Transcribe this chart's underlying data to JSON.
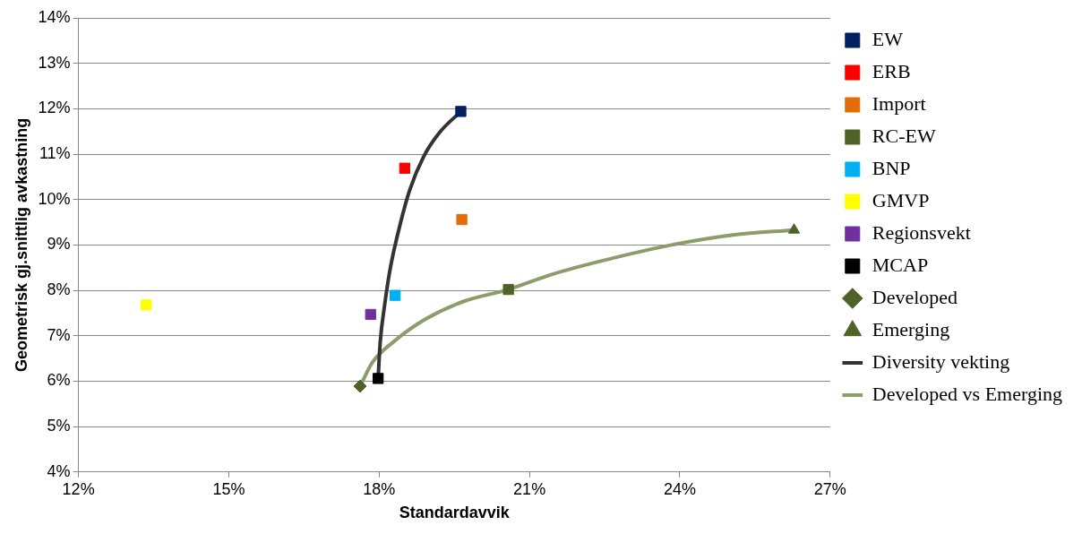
{
  "chart_data": {
    "type": "scatter",
    "xlabel": "Standardavvik",
    "ylabel": "Geometrisk gj.snittlig avkastning",
    "grid": "y",
    "legend": "right",
    "xlim": [
      12,
      27
    ],
    "xticks": [
      {
        "value": 12,
        "label": "12%"
      },
      {
        "value": 15,
        "label": "15%"
      },
      {
        "value": 18,
        "label": "18%"
      },
      {
        "value": 21,
        "label": "21%"
      },
      {
        "value": 24,
        "label": "24%"
      },
      {
        "value": 27,
        "label": "27%"
      }
    ],
    "ylim": [
      4,
      14
    ],
    "yticks": [
      {
        "value": 4,
        "label": "4%"
      },
      {
        "value": 5,
        "label": "5%"
      },
      {
        "value": 6,
        "label": "6%"
      },
      {
        "value": 7,
        "label": "7%"
      },
      {
        "value": 8,
        "label": "8%"
      },
      {
        "value": 9,
        "label": "9%"
      },
      {
        "value": 10,
        "label": "10%"
      },
      {
        "value": 11,
        "label": "11%"
      },
      {
        "value": 12,
        "label": "12%"
      },
      {
        "value": 13,
        "label": "13%"
      },
      {
        "value": 14,
        "label": "14%"
      }
    ],
    "series": [
      {
        "name": "EW",
        "type": "scatter",
        "marker": "square",
        "color": "#002060",
        "x": [
          19.63
        ],
        "values": [
          11.94
        ]
      },
      {
        "name": "ERB",
        "type": "scatter",
        "marker": "square",
        "color": "#ff0000",
        "x": [
          18.51
        ],
        "values": [
          10.69
        ]
      },
      {
        "name": "Import",
        "type": "scatter",
        "marker": "square",
        "color": "#e36c09",
        "x": [
          19.65
        ],
        "values": [
          9.56
        ]
      },
      {
        "name": "RC-EW",
        "type": "scatter",
        "marker": "square",
        "color": "#4f6228",
        "x": [
          20.58
        ],
        "values": [
          8.02
        ]
      },
      {
        "name": "BNP",
        "type": "scatter",
        "marker": "square",
        "color": "#00b0f0",
        "x": [
          18.32
        ],
        "values": [
          7.89
        ]
      },
      {
        "name": "GMVP",
        "type": "scatter",
        "marker": "square",
        "color": "#ffff00",
        "x": [
          13.35
        ],
        "values": [
          7.68
        ]
      },
      {
        "name": "Regionsvekt",
        "type": "scatter",
        "marker": "square",
        "color": "#7030a0",
        "x": [
          17.83
        ],
        "values": [
          7.47
        ]
      },
      {
        "name": "MCAP",
        "type": "scatter",
        "marker": "square",
        "color": "#000000",
        "x": [
          17.98
        ],
        "values": [
          6.06
        ]
      },
      {
        "name": "Developed",
        "type": "scatter",
        "marker": "diamond",
        "color": "#4f6228",
        "x": [
          17.62
        ],
        "values": [
          5.89
        ]
      },
      {
        "name": "Emerging",
        "type": "scatter",
        "marker": "triangle",
        "color": "#4f6228",
        "x": [
          26.28
        ],
        "values": [
          9.33
        ]
      },
      {
        "name": "Diversity vekting",
        "type": "line",
        "marker": "none",
        "color": "#333333",
        "x": [
          17.98,
          18.02,
          18.11,
          18.23,
          18.4,
          18.61,
          18.89,
          19.2,
          19.63
        ],
        "values": [
          6.06,
          6.84,
          7.68,
          8.53,
          9.37,
          10.21,
          10.95,
          11.47,
          11.94
        ]
      },
      {
        "name": "Developed vs Emerging",
        "type": "line",
        "marker": "none",
        "color": "#8c9c6a",
        "x": [
          17.62,
          17.87,
          18.3,
          18.93,
          19.67,
          20.58,
          21.47,
          22.52,
          23.79,
          25.06,
          26.28
        ],
        "values": [
          5.89,
          6.42,
          6.88,
          7.37,
          7.75,
          8.02,
          8.36,
          8.67,
          8.99,
          9.22,
          9.33
        ]
      }
    ]
  }
}
